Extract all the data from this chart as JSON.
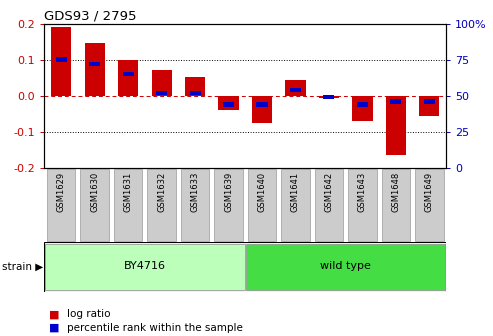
{
  "title": "GDS93 / 2795",
  "samples": [
    "GSM1629",
    "GSM1630",
    "GSM1631",
    "GSM1632",
    "GSM1633",
    "GSM1639",
    "GSM1640",
    "GSM1641",
    "GSM1642",
    "GSM1643",
    "GSM1648",
    "GSM1649"
  ],
  "log_ratio": [
    0.19,
    0.145,
    0.1,
    0.072,
    0.053,
    -0.04,
    -0.075,
    0.045,
    -0.005,
    -0.07,
    -0.165,
    -0.055
  ],
  "percentile_rank": [
    75,
    72,
    65,
    52,
    52,
    44,
    44,
    54,
    49,
    44,
    46,
    46
  ],
  "groups": [
    {
      "label": "BY4716",
      "start": 0,
      "end": 5,
      "color": "#bbffbb"
    },
    {
      "label": "wild type",
      "start": 6,
      "end": 11,
      "color": "#44dd44"
    }
  ],
  "ylim": [
    -0.2,
    0.2
  ],
  "yticks_left": [
    -0.2,
    -0.1,
    0.0,
    0.1,
    0.2
  ],
  "yticks_right": [
    0,
    25,
    50,
    75,
    100
  ],
  "bar_color_red": "#cc0000",
  "bar_color_blue": "#0000cc",
  "bar_width": 0.6,
  "zero_line_color": "#cc0000",
  "label_color_left": "#cc0000",
  "label_color_right": "#0000bb",
  "xtick_bg": "#cccccc",
  "xtick_border": "#999999"
}
